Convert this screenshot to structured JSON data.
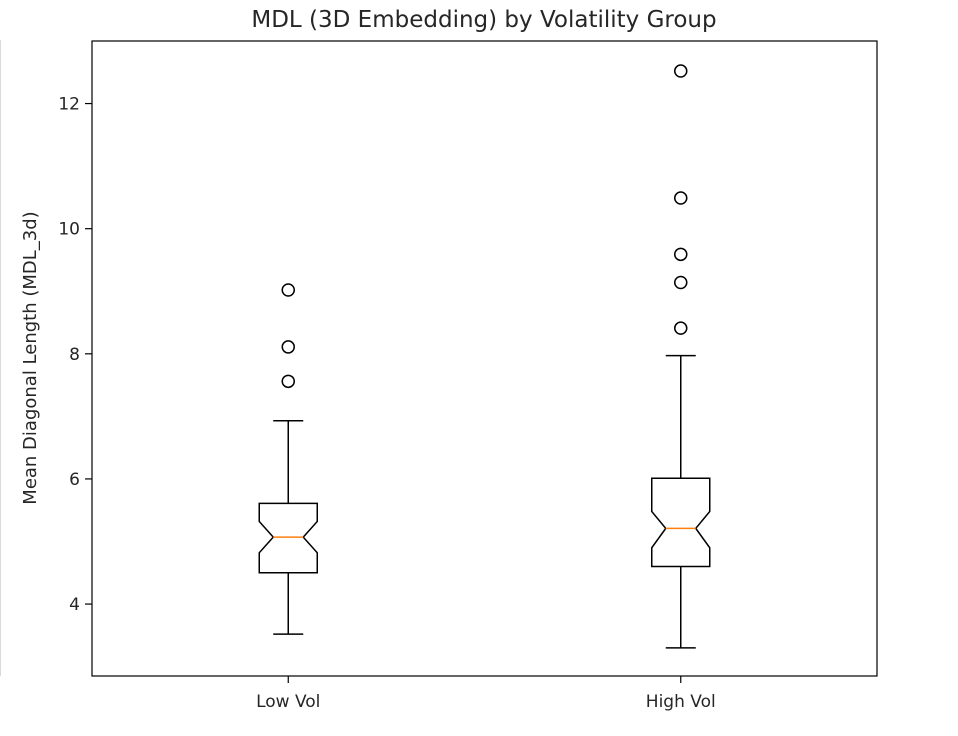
{
  "chart_data": {
    "type": "box",
    "title": "MDL (3D Embedding) by Volatility Group",
    "xlabel": "",
    "ylabel": "Mean Diagonal Length (MDL_3d)",
    "categories": [
      "Low Vol",
      "High Vol"
    ],
    "ylim": [
      2.85,
      13.0
    ],
    "yticks": [
      4,
      6,
      8,
      10,
      12
    ],
    "notched": true,
    "grid": false,
    "boxes": [
      {
        "category": "Low Vol",
        "whisker_low": 3.52,
        "q1": 4.5,
        "median": 5.07,
        "q3": 5.61,
        "whisker_high": 6.93,
        "notch_low": 4.82,
        "notch_high": 5.32,
        "outliers": [
          7.56,
          8.11,
          9.02
        ]
      },
      {
        "category": "High Vol",
        "whisker_low": 3.3,
        "q1": 4.6,
        "median": 5.21,
        "q3": 6.01,
        "whisker_high": 7.97,
        "notch_low": 4.9,
        "notch_high": 5.48,
        "outliers": [
          8.41,
          9.14,
          9.59,
          10.49,
          12.52
        ]
      }
    ],
    "colors": {
      "box": "#000000",
      "median": "#ff7f0e",
      "text": "#262626"
    }
  }
}
